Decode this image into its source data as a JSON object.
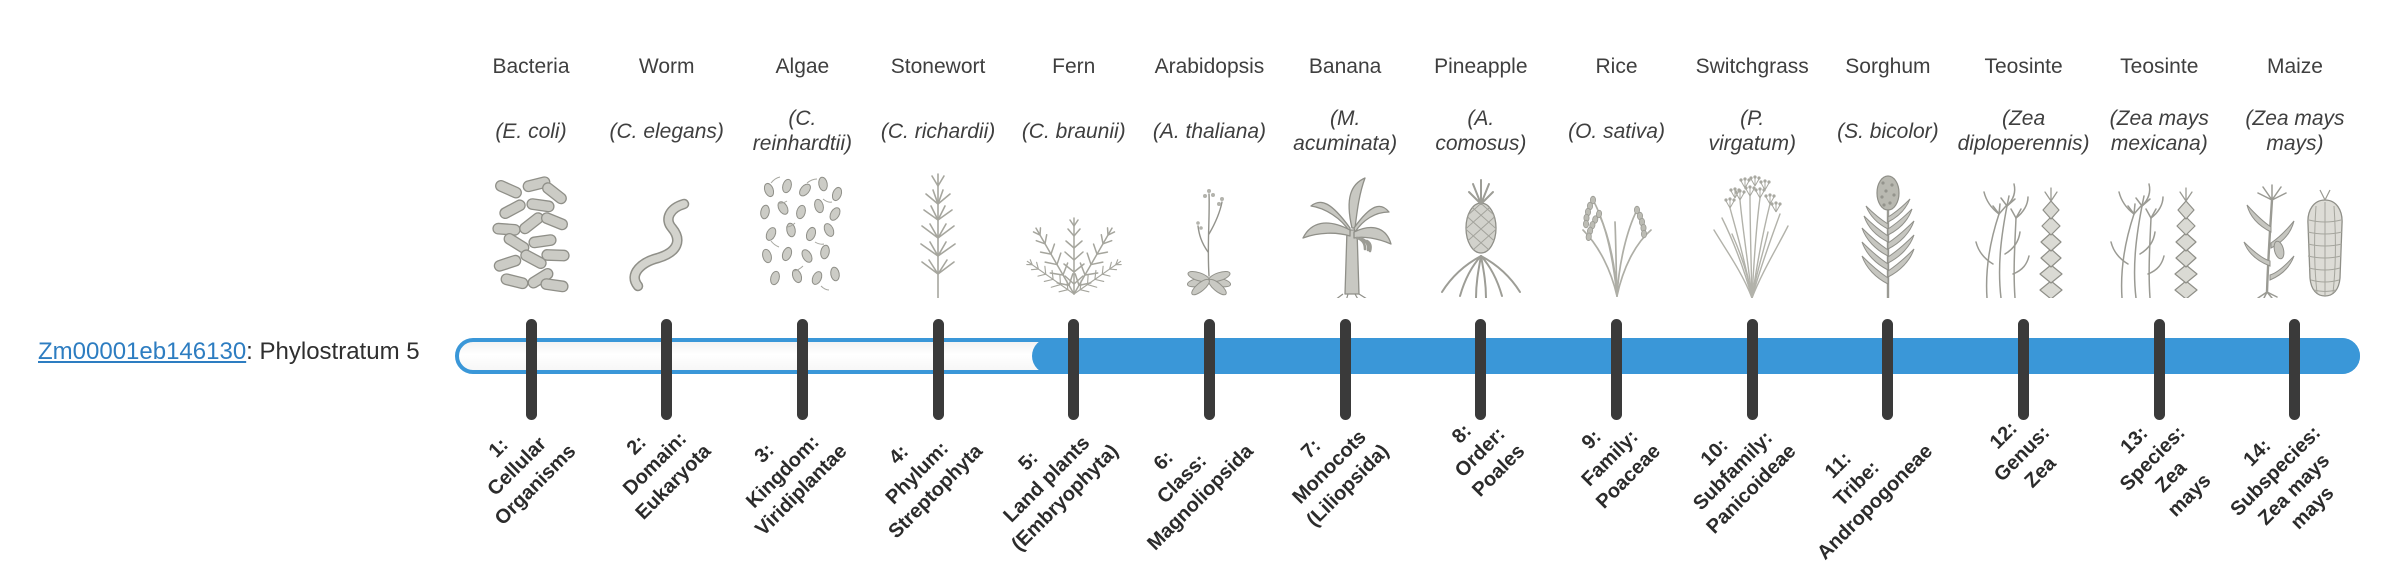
{
  "colors": {
    "accent": "#3a97d8",
    "tick": "#3a3a3a",
    "link": "#2d7dc1",
    "text": "#3f3f3f",
    "label": "#2b2b2b"
  },
  "gene": {
    "id": "Zm00001eb146130",
    "stratum_text": ": Phylostratum 5"
  },
  "bar": {
    "phylostratum": 5,
    "strata_count": 14,
    "fill_start_percent": 30.3
  },
  "organisms": [
    {
      "name": "Bacteria",
      "sci": "(E. coli)",
      "icon": "bacteria-icon",
      "stratum": "1:\nCellular\nOrganisms"
    },
    {
      "name": "Worm",
      "sci": "(C. elegans)",
      "icon": "worm-icon",
      "stratum": "2:\nDomain:\nEukaryota"
    },
    {
      "name": "Algae",
      "sci": "(C.\nreinhardtii)",
      "icon": "algae-icon",
      "stratum": "3:\nKingdom:\nViridiplantae"
    },
    {
      "name": "Stonewort",
      "sci": "(C. richardii)",
      "icon": "stonewort-icon",
      "stratum": "4:\nPhylum:\nStreptophyta"
    },
    {
      "name": "Fern",
      "sci": "(C. braunii)",
      "icon": "fern-icon",
      "stratum": "5:\nLand plants\n(Embryophyta)"
    },
    {
      "name": "Arabidopsis",
      "sci": "(A. thaliana)",
      "icon": "arabidopsis-icon",
      "stratum": "6:\nClass:\nMagnoliopsida"
    },
    {
      "name": "Banana",
      "sci": "(M.\nacuminata)",
      "icon": "banana-icon",
      "stratum": "7:\nMonocots\n(Liliopsida)"
    },
    {
      "name": "Pineapple",
      "sci": "(A.\ncomosus)",
      "icon": "pineapple-icon",
      "stratum": "8:\nOrder:\nPoales"
    },
    {
      "name": "Rice",
      "sci": "(O. sativa)",
      "icon": "rice-icon",
      "stratum": "9:\nFamily:\nPoaceae"
    },
    {
      "name": "Switchgrass",
      "sci": "(P.\nvirgatum)",
      "icon": "switchgrass-icon",
      "stratum": "10:\nSubfamily:\nPanicoideae"
    },
    {
      "name": "Sorghum",
      "sci": "(S. bicolor)",
      "icon": "sorghum-icon",
      "stratum": "11:\nTribe:\nAndropogoneae"
    },
    {
      "name": "Teosinte",
      "sci": "(Zea\ndiploperennis)",
      "icon": "teosinte-icon",
      "stratum": "12:\nGenus:\nZea"
    },
    {
      "name": "Teosinte",
      "sci": "(Zea mays\nmexicana)",
      "icon": "teosinte-icon",
      "stratum": "13:\nSpecies:\nZea\nmays"
    },
    {
      "name": "Maize",
      "sci": "(Zea mays\nmays)",
      "icon": "maize-icon",
      "stratum": "14:\nSubspecies:\nZea mays\nmays"
    }
  ]
}
